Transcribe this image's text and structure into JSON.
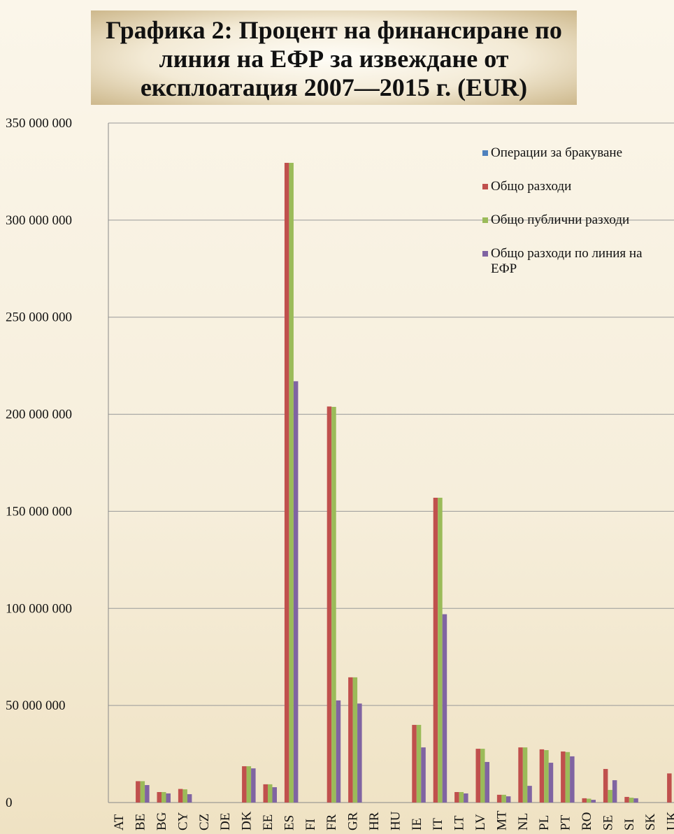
{
  "chart_data": {
    "type": "bar",
    "title": "Графика 2: Процент на финансиране по линия на ЕФР за извеждане от експлоатация 2007—2015 г. (EUR)",
    "categories": [
      "AT",
      "BE",
      "BG",
      "CY",
      "CZ",
      "DE",
      "DK",
      "EE",
      "ES",
      "FI",
      "FR",
      "GR",
      "HR",
      "HU",
      "IE",
      "IT",
      "LT",
      "LV",
      "MT",
      "NL",
      "PL",
      "PT",
      "RO",
      "SE",
      "SI",
      "SK",
      "UK"
    ],
    "series": [
      {
        "name": "Операции  за бракуване",
        "color": "#4f81bd",
        "values": [
          0,
          0,
          0,
          0,
          0,
          0,
          0,
          0,
          0,
          0,
          0,
          0,
          0,
          0,
          0,
          0,
          0,
          0,
          0,
          0,
          0,
          0,
          0,
          0,
          0,
          0,
          0
        ]
      },
      {
        "name": "Общо разходи",
        "color": "#c0504d",
        "values": [
          0,
          11000000,
          5400000,
          7000000,
          0,
          0,
          18700000,
          9400000,
          329500000,
          0,
          204000000,
          64500000,
          0,
          0,
          40000000,
          157000000,
          5400000,
          27700000,
          4000000,
          28400000,
          27400000,
          26300000,
          2200000,
          17300000,
          2900000,
          0,
          15000000
        ]
      },
      {
        "name": "Общо публични разходи",
        "color": "#9bbb59",
        "values": [
          0,
          11000000,
          5400000,
          6800000,
          0,
          0,
          18700000,
          9400000,
          329500000,
          0,
          203800000,
          64500000,
          0,
          0,
          40000000,
          157000000,
          5400000,
          27700000,
          4000000,
          28400000,
          27000000,
          26000000,
          2000000,
          6500000,
          2500000,
          0,
          null
        ]
      },
      {
        "name": "Общо разходи по линия на ЕФР",
        "color": "#8064a2",
        "values": [
          0,
          9000000,
          4700000,
          4300000,
          0,
          0,
          17600000,
          7900000,
          217000000,
          0,
          52600000,
          51000000,
          0,
          0,
          28400000,
          97000000,
          4700000,
          20900000,
          3200000,
          8600000,
          20500000,
          23800000,
          1400000,
          11500000,
          2200000,
          0,
          null
        ]
      }
    ],
    "ylim": [
      0,
      350000000
    ],
    "yticks": [
      {
        "value": 0,
        "label": "0"
      },
      {
        "value": 50000000,
        "label": "50 000  000"
      },
      {
        "value": 100000000,
        "label": "100 000  000"
      },
      {
        "value": 150000000,
        "label": "150 000  000"
      },
      {
        "value": 200000000,
        "label": "200 000  000"
      },
      {
        "value": 250000000,
        "label": "250 000  000"
      },
      {
        "value": 300000000,
        "label": "300 000  000"
      },
      {
        "value": 350000000,
        "label": "350 000  000"
      }
    ],
    "grid": true
  }
}
